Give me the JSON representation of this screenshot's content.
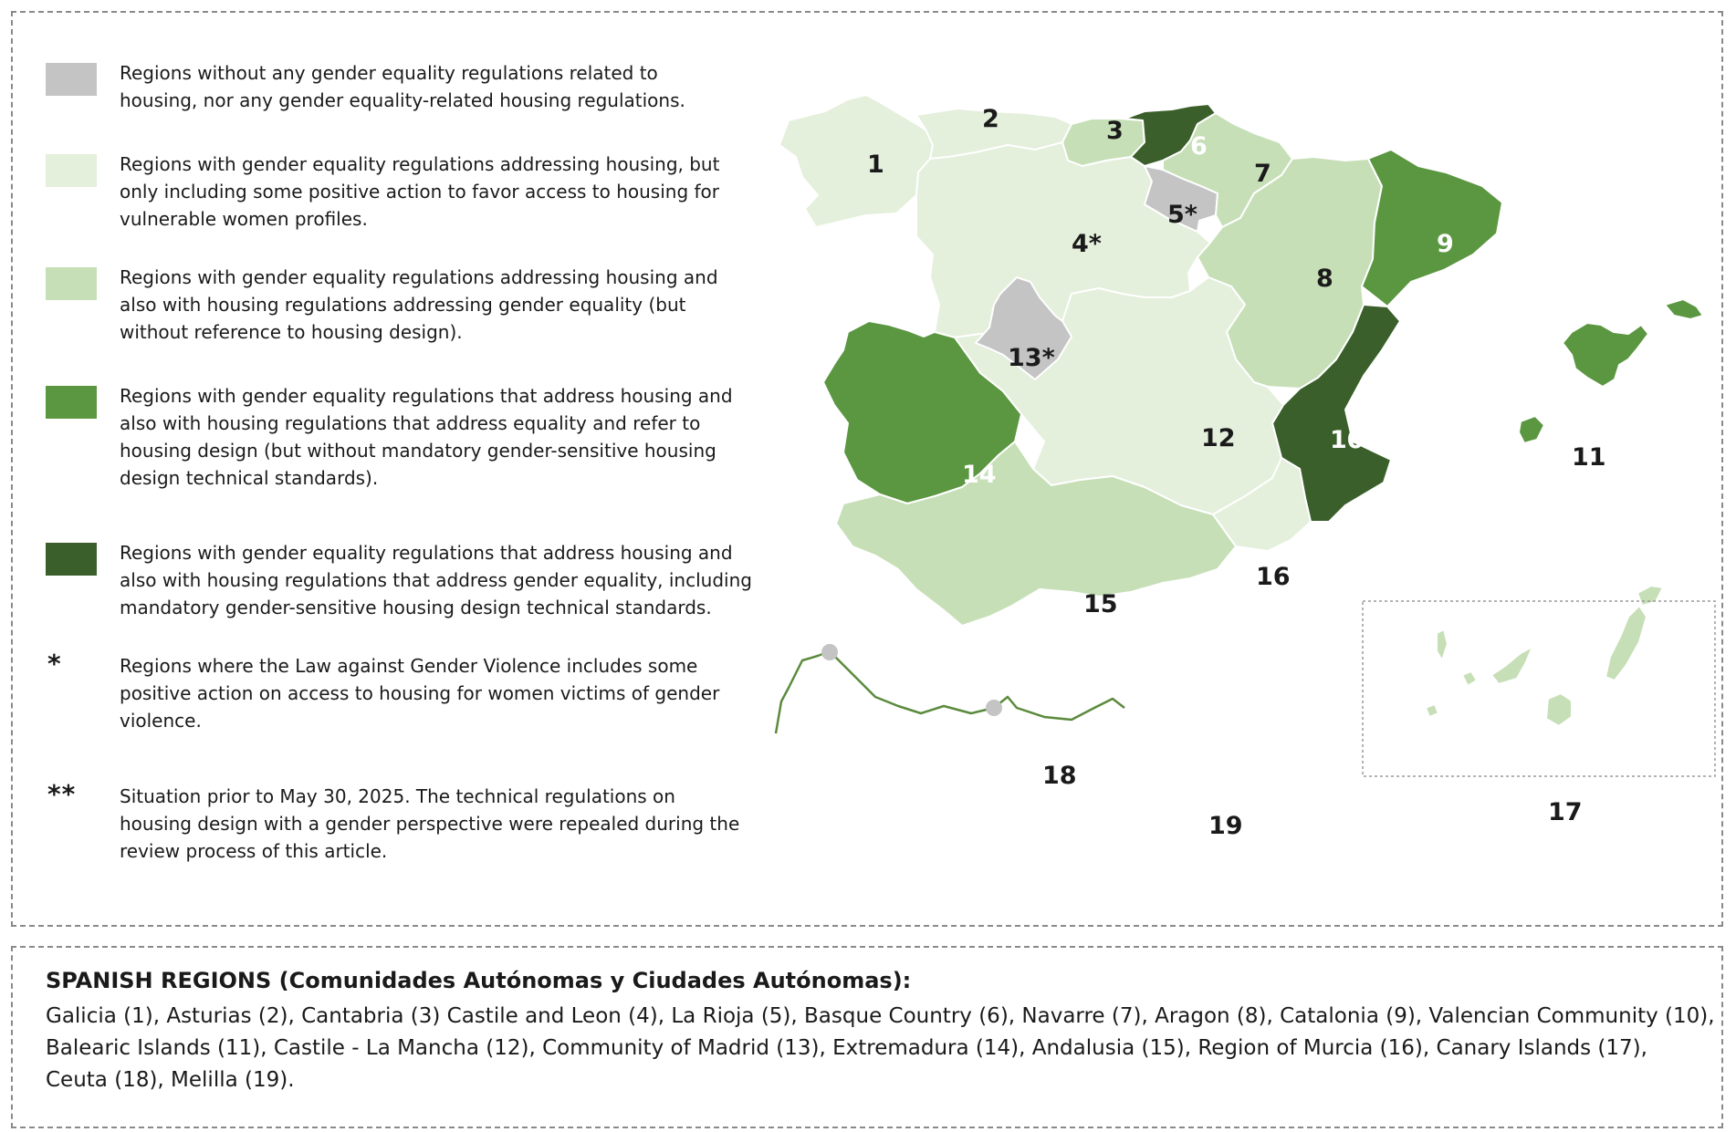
{
  "legend": {
    "items": [
      {
        "color": "#c4c4c4",
        "text": "Regions without any gender equality regulations related to\nhousing, nor any gender equality-related housing regulations."
      },
      {
        "color": "#e4efdc",
        "text": "Regions with gender equality regulations addressing housing, but\nonly including some positive action to favor access to housing for\nvulnerable women profiles."
      },
      {
        "color": "#c6dfb7",
        "text": "Regions with gender equality regulations addressing housing and\nalso with housing regulations addressing gender equality (but\nwithout reference to housing design)."
      },
      {
        "color": "#5b9640",
        "text": "Regions with gender equality regulations that address housing and\nalso with housing regulations that address equality and refer to\nhousing design (but without mandatory gender-sensitive housing\ndesign technical standards)."
      },
      {
        "color": "#3a5f2a",
        "text": "Regions with gender equality regulations that address housing and\nalso with housing regulations that address gender equality, including\nmandatory gender-sensitive housing design technical standards."
      }
    ],
    "notes": [
      {
        "mark": "*",
        "text": "Regions where the Law against Gender Violence includes some\npositive action on access to housing for women victims of gender\nviolence."
      },
      {
        "mark": "**",
        "text": "Situation prior to May 30, 2025. The technical regulations on\nhousing design with a gender perspective were repealed during the\nreview process of this article."
      }
    ]
  },
  "map": {
    "regions": [
      {
        "id": "1",
        "label": "1",
        "category": 1,
        "star": ""
      },
      {
        "id": "2",
        "label": "2",
        "category": 1,
        "star": ""
      },
      {
        "id": "3",
        "label": "3",
        "category": 2,
        "star": ""
      },
      {
        "id": "4",
        "label": "4",
        "category": 1,
        "star": "*"
      },
      {
        "id": "5",
        "label": "5",
        "category": 0,
        "star": "*"
      },
      {
        "id": "6",
        "label": "6",
        "category": 4,
        "star": ""
      },
      {
        "id": "7",
        "label": "7",
        "category": 2,
        "star": ""
      },
      {
        "id": "8",
        "label": "8",
        "category": 2,
        "star": ""
      },
      {
        "id": "9",
        "label": "9",
        "category": 3,
        "star": ""
      },
      {
        "id": "10",
        "label": "10",
        "category": 4,
        "star": "**"
      },
      {
        "id": "11",
        "label": "11",
        "category": 3,
        "star": ""
      },
      {
        "id": "12",
        "label": "12",
        "category": 1,
        "star": ""
      },
      {
        "id": "13",
        "label": "13",
        "category": 0,
        "star": "*"
      },
      {
        "id": "14",
        "label": "14",
        "category": 3,
        "star": ""
      },
      {
        "id": "15",
        "label": "15",
        "category": 2,
        "star": ""
      },
      {
        "id": "16",
        "label": "16",
        "category": 1,
        "star": ""
      },
      {
        "id": "17",
        "label": "17",
        "category": 2,
        "star": ""
      },
      {
        "id": "18",
        "label": "18",
        "category": 0,
        "star": ""
      },
      {
        "id": "19",
        "label": "19",
        "category": 0,
        "star": ""
      }
    ],
    "colors": {
      "cat0": "#c4c4c4",
      "cat1": "#e4efdc",
      "cat2": "#c6dfb7",
      "cat3": "#5b9640",
      "cat4": "#3a5f2a",
      "border": "#ffffff",
      "coast": "#5b8a3c"
    }
  },
  "regions_info": {
    "heading": "SPANISH REGIONS (Comunidades Autónomas y Ciudades Autónomas):",
    "list": "Galicia (1), Asturias (2), Cantabria (3) Castile and Leon (4), La Rioja (5), Basque Country (6), Navarre (7), Aragon (8), Catalonia (9), Valencian Community (10), Balearic Islands (11), Castile - La Mancha (12), Community of Madrid (13), Extremadura (14), Andalusia (15), Region of Murcia (16), Canary Islands (17), Ceuta (18), Melilla (19)."
  }
}
